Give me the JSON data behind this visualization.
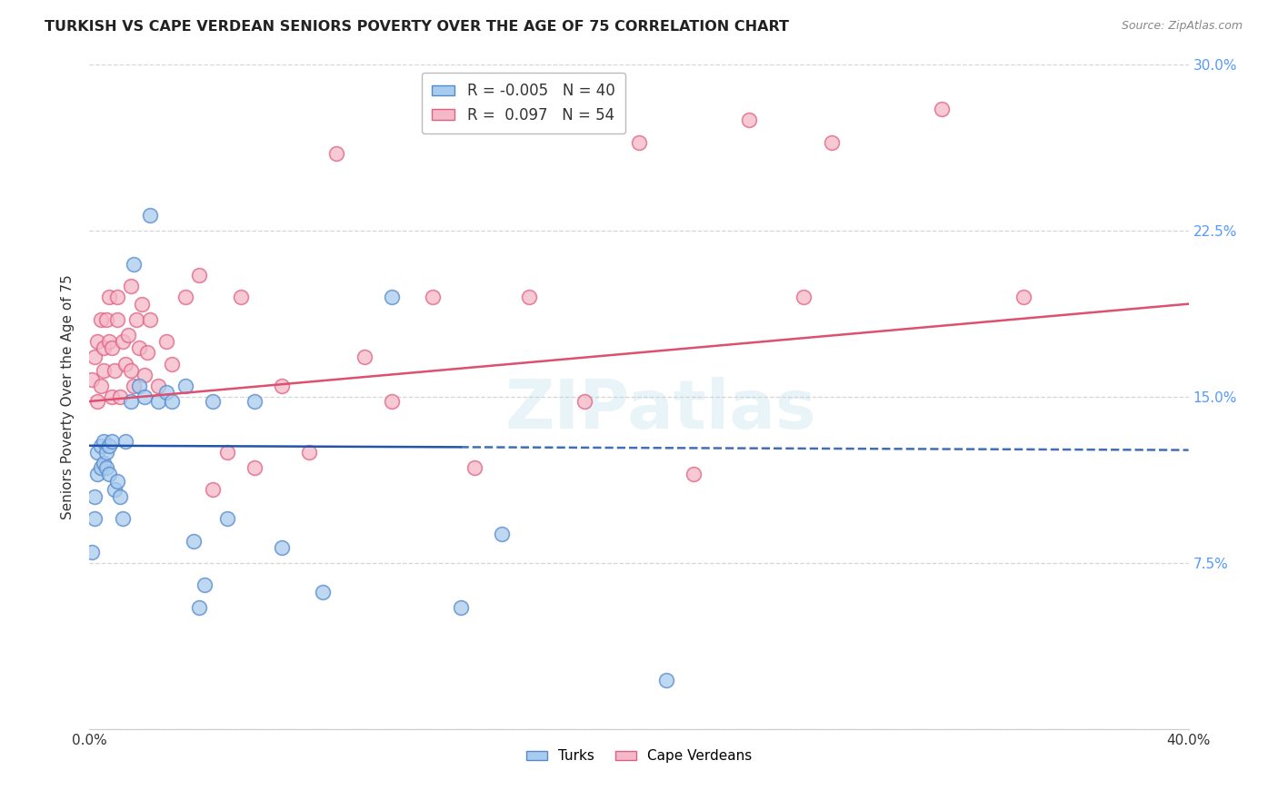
{
  "title": "TURKISH VS CAPE VERDEAN SENIORS POVERTY OVER THE AGE OF 75 CORRELATION CHART",
  "source": "Source: ZipAtlas.com",
  "ylabel": "Seniors Poverty Over the Age of 75",
  "xlim": [
    0.0,
    0.4
  ],
  "ylim": [
    0.0,
    0.3
  ],
  "xtick_positions": [
    0.0,
    0.05,
    0.1,
    0.15,
    0.2,
    0.25,
    0.3,
    0.35,
    0.4
  ],
  "ytick_positions": [
    0.0,
    0.075,
    0.15,
    0.225,
    0.3
  ],
  "yticklabels_right": [
    "",
    "7.5%",
    "15.0%",
    "22.5%",
    "30.0%"
  ],
  "turks_R": -0.005,
  "turks_N": 40,
  "cape_R": 0.097,
  "cape_N": 54,
  "turks_color": "#A8CCEE",
  "cape_color": "#F5B8C8",
  "turks_edge_color": "#5588CC",
  "cape_edge_color": "#E06080",
  "turks_line_color": "#2255AA",
  "cape_line_color": "#DD5070",
  "watermark": "ZIPatlas",
  "background_color": "#ffffff",
  "grid_color": "#CCCCCC",
  "right_tick_color": "#5599FF",
  "turks_x": [
    0.001,
    0.002,
    0.002,
    0.003,
    0.003,
    0.004,
    0.004,
    0.005,
    0.005,
    0.006,
    0.006,
    0.007,
    0.007,
    0.008,
    0.009,
    0.01,
    0.011,
    0.012,
    0.013,
    0.015,
    0.016,
    0.018,
    0.02,
    0.022,
    0.025,
    0.028,
    0.03,
    0.035,
    0.038,
    0.04,
    0.042,
    0.045,
    0.05,
    0.06,
    0.07,
    0.085,
    0.11,
    0.135,
    0.15,
    0.21
  ],
  "turks_y": [
    0.08,
    0.095,
    0.105,
    0.115,
    0.125,
    0.118,
    0.128,
    0.12,
    0.13,
    0.125,
    0.118,
    0.128,
    0.115,
    0.13,
    0.108,
    0.112,
    0.105,
    0.095,
    0.13,
    0.148,
    0.21,
    0.155,
    0.15,
    0.232,
    0.148,
    0.152,
    0.148,
    0.155,
    0.085,
    0.055,
    0.065,
    0.148,
    0.095,
    0.148,
    0.082,
    0.062,
    0.195,
    0.055,
    0.088,
    0.022
  ],
  "cape_x": [
    0.001,
    0.002,
    0.003,
    0.003,
    0.004,
    0.004,
    0.005,
    0.005,
    0.006,
    0.007,
    0.007,
    0.008,
    0.008,
    0.009,
    0.01,
    0.01,
    0.011,
    0.012,
    0.013,
    0.014,
    0.015,
    0.015,
    0.016,
    0.017,
    0.018,
    0.019,
    0.02,
    0.021,
    0.022,
    0.025,
    0.028,
    0.03,
    0.035,
    0.04,
    0.045,
    0.05,
    0.055,
    0.06,
    0.07,
    0.08,
    0.09,
    0.1,
    0.11,
    0.125,
    0.14,
    0.16,
    0.18,
    0.2,
    0.22,
    0.24,
    0.26,
    0.27,
    0.31,
    0.34
  ],
  "cape_y": [
    0.158,
    0.168,
    0.148,
    0.175,
    0.155,
    0.185,
    0.172,
    0.162,
    0.185,
    0.175,
    0.195,
    0.15,
    0.172,
    0.162,
    0.185,
    0.195,
    0.15,
    0.175,
    0.165,
    0.178,
    0.162,
    0.2,
    0.155,
    0.185,
    0.172,
    0.192,
    0.16,
    0.17,
    0.185,
    0.155,
    0.175,
    0.165,
    0.195,
    0.205,
    0.108,
    0.125,
    0.195,
    0.118,
    0.155,
    0.125,
    0.26,
    0.168,
    0.148,
    0.195,
    0.118,
    0.195,
    0.148,
    0.265,
    0.115,
    0.275,
    0.195,
    0.265,
    0.28,
    0.195
  ],
  "turks_line_y0": 0.128,
  "turks_line_y1": 0.126,
  "cape_line_y0": 0.148,
  "cape_line_y1": 0.192
}
